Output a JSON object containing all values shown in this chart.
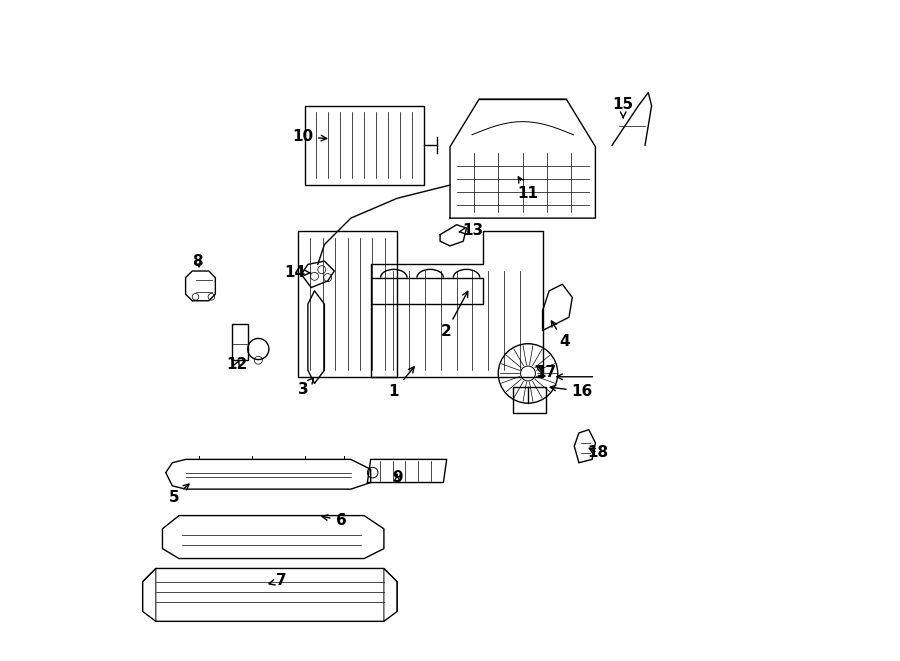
{
  "title": "",
  "bg_color": "#ffffff",
  "line_color": "#000000",
  "label_color": "#000000",
  "fig_width": 9.0,
  "fig_height": 6.61,
  "dpi": 100
}
